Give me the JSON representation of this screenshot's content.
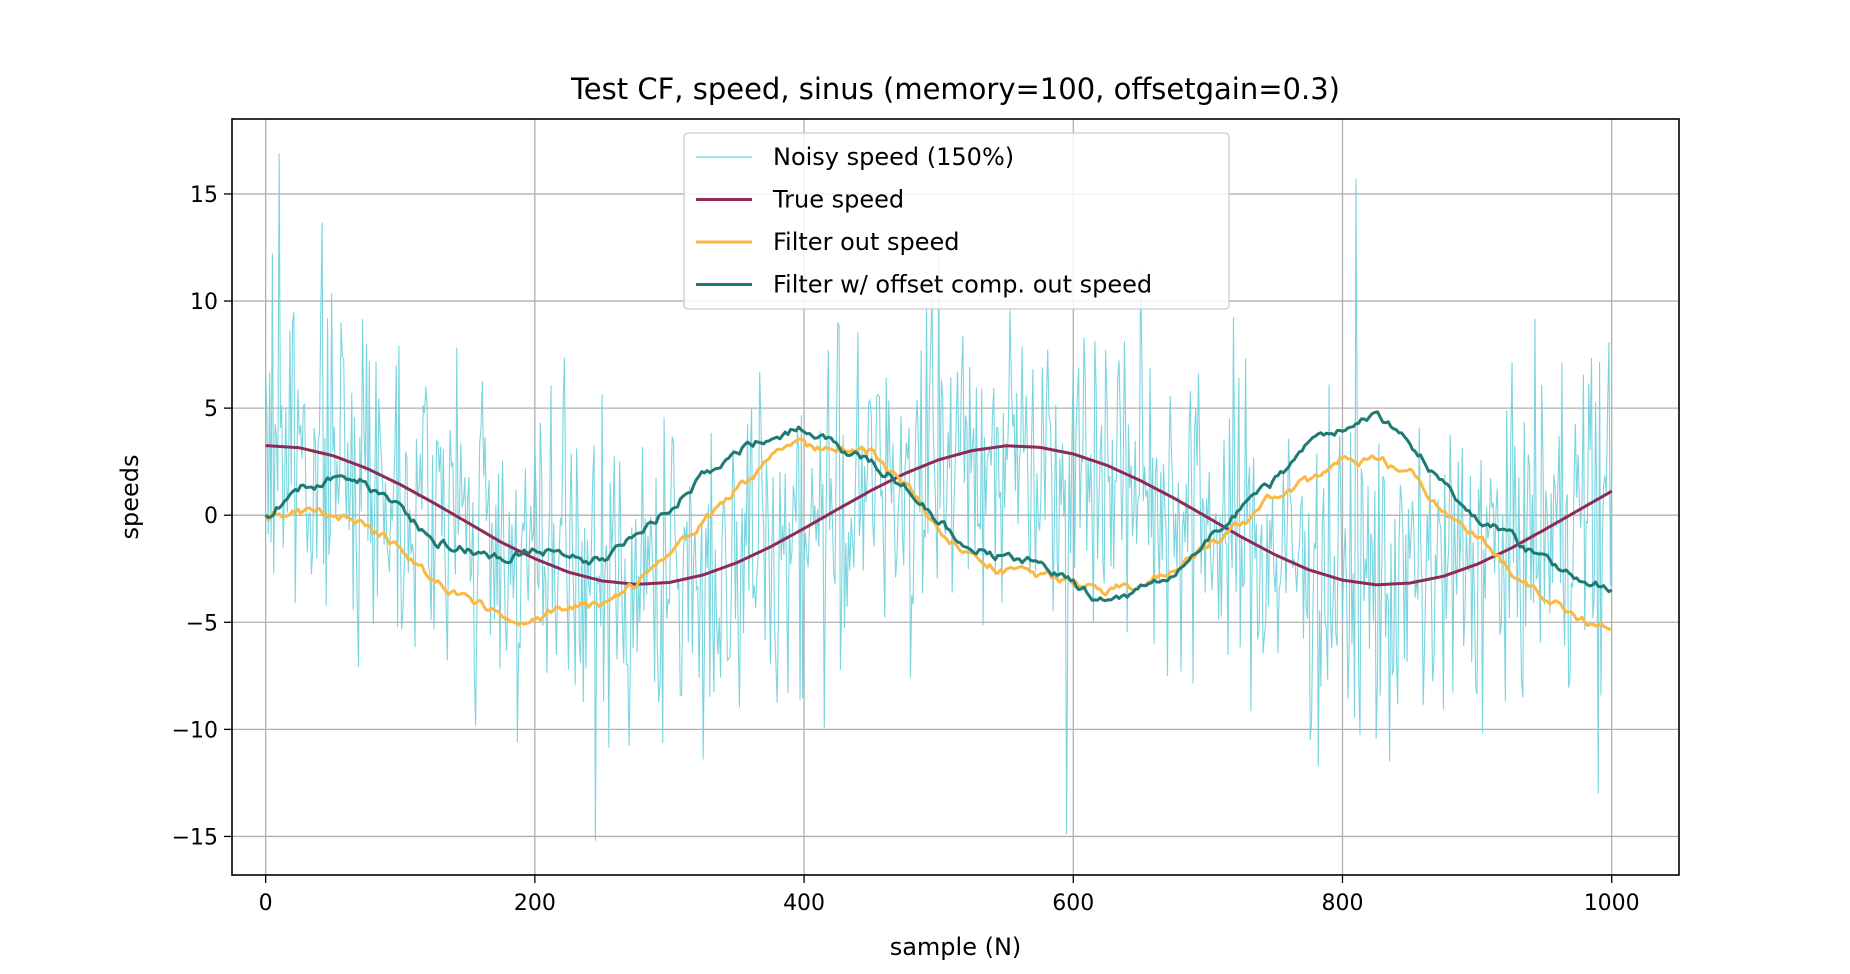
{
  "chart_data": {
    "type": "line",
    "title": "Test CF, speed, sinus (memory=100, offsetgain=0.3)",
    "xlabel": "sample (N)",
    "ylabel": "speeds",
    "xlim": [
      -25,
      1050
    ],
    "ylim": [
      -16.8,
      18.5
    ],
    "xticks": [
      0,
      200,
      400,
      600,
      800,
      1000
    ],
    "xtick_labels": [
      "0",
      "200",
      "400",
      "600",
      "800",
      "1000"
    ],
    "yticks": [
      -15,
      -10,
      -5,
      0,
      5,
      10,
      15
    ],
    "ytick_labels": [
      "−15",
      "−10",
      "−5",
      "0",
      "5",
      "10",
      "15"
    ],
    "grid": true,
    "legend_position": "top-center",
    "colors": {
      "noisy": "#6dd0dc",
      "true": "#8e2a55",
      "filter": "#fbb944",
      "offset": "#1e7a73"
    },
    "series": [
      {
        "name": "Noisy speed (150%)",
        "key": "noisy",
        "noise_amplitude_estimate": 6,
        "annotated_peaks": [
          {
            "x": 10,
            "y": 16.9
          },
          {
            "x": 245,
            "y": -15.2
          },
          {
            "x": 595,
            "y": -14.9
          },
          {
            "x": 810,
            "y": 15.7
          },
          {
            "x": 990,
            "y": -13.0
          }
        ]
      },
      {
        "name": "True speed",
        "key": "true",
        "x": [
          0,
          25,
          50,
          75,
          100,
          125,
          150,
          175,
          200,
          225,
          250,
          275,
          300,
          325,
          350,
          375,
          400,
          425,
          450,
          475,
          500,
          525,
          550,
          575,
          600,
          625,
          650,
          675,
          700,
          725,
          750,
          775,
          800,
          825,
          850,
          875,
          900,
          925,
          950,
          975,
          1000
        ],
        "y": [
          3.25,
          3.15,
          2.78,
          2.19,
          1.43,
          0.57,
          -0.34,
          -1.26,
          -2.03,
          -2.66,
          -3.07,
          -3.23,
          -3.14,
          -2.79,
          -2.22,
          -1.48,
          -0.62,
          0.28,
          1.16,
          1.95,
          2.59,
          3.02,
          3.24,
          3.17,
          2.86,
          2.33,
          1.61,
          0.79,
          -0.11,
          -1.02,
          -1.85,
          -2.55,
          -3.03,
          -3.25,
          -3.17,
          -2.85,
          -2.29,
          -1.55,
          -0.68,
          0.22,
          1.12
        ]
      },
      {
        "name": "Filter out speed",
        "key": "filter",
        "x": [
          0,
          25,
          50,
          75,
          100,
          125,
          150,
          175,
          200,
          225,
          250,
          275,
          300,
          325,
          350,
          375,
          400,
          425,
          450,
          475,
          500,
          525,
          550,
          575,
          600,
          625,
          650,
          675,
          700,
          725,
          750,
          775,
          800,
          825,
          850,
          875,
          900,
          925,
          950,
          975,
          1000
        ],
        "y": [
          0.0,
          0.1,
          -0.1,
          -0.5,
          -1.6,
          -3.0,
          -3.9,
          -4.6,
          -4.8,
          -4.4,
          -4.2,
          -3.3,
          -2.0,
          -0.4,
          1.2,
          2.6,
          3.2,
          3.1,
          2.9,
          1.4,
          -0.7,
          -1.9,
          -2.6,
          -2.9,
          -3.2,
          -3.5,
          -3.2,
          -2.3,
          -1.3,
          -0.5,
          0.9,
          1.6,
          2.5,
          2.5,
          2.0,
          0.2,
          -1.0,
          -2.5,
          -3.9,
          -4.8,
          -5.3
        ]
      },
      {
        "name": "Filter w/ offset comp. out speed",
        "key": "offset",
        "x": [
          0,
          25,
          50,
          75,
          100,
          125,
          150,
          175,
          200,
          225,
          250,
          275,
          300,
          325,
          350,
          375,
          400,
          425,
          450,
          475,
          500,
          525,
          550,
          575,
          600,
          625,
          650,
          675,
          700,
          725,
          750,
          775,
          800,
          825,
          850,
          875,
          900,
          925,
          950,
          975,
          1000
        ],
        "y": [
          0.0,
          1.2,
          1.7,
          1.5,
          0.2,
          -1.2,
          -1.6,
          -2.0,
          -1.5,
          -2.0,
          -2.1,
          -1.0,
          0.4,
          1.8,
          3.1,
          3.8,
          4.1,
          3.2,
          2.4,
          1.5,
          -0.3,
          -1.5,
          -2.0,
          -2.3,
          -3.3,
          -4.0,
          -3.5,
          -2.6,
          -1.2,
          0.3,
          1.6,
          3.4,
          3.9,
          4.6,
          3.3,
          1.5,
          -0.2,
          -1.0,
          -2.2,
          -3.1,
          -3.5
        ]
      }
    ]
  }
}
